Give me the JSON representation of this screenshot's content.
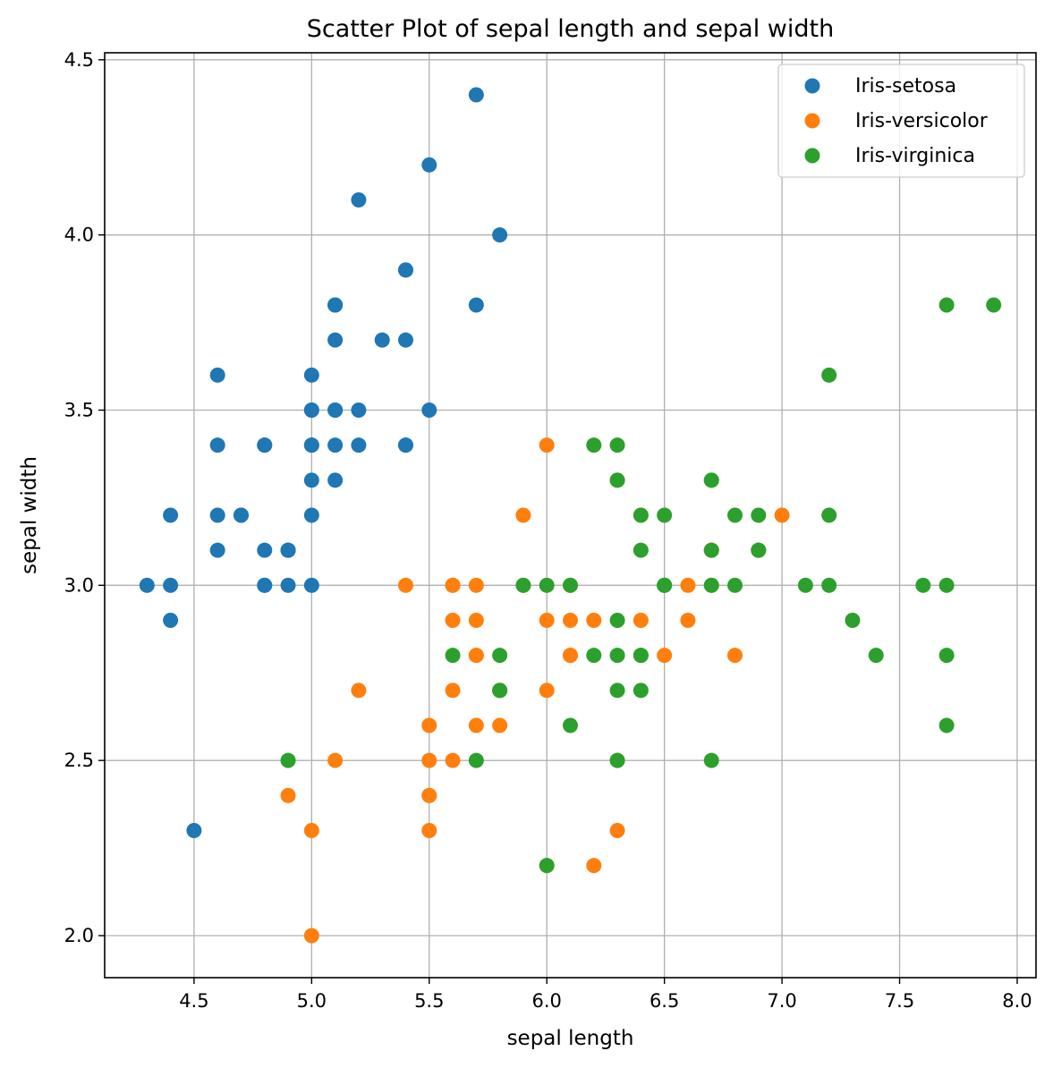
{
  "chart_data": {
    "type": "scatter",
    "title": "Scatter Plot of sepal length and sepal width",
    "xlabel": "sepal length",
    "ylabel": "sepal width",
    "xlim": [
      4.12,
      8.08
    ],
    "ylim": [
      1.88,
      4.52
    ],
    "xticks": [
      "4.5",
      "5.0",
      "5.5",
      "6.0",
      "6.5",
      "7.0",
      "7.5",
      "8.0"
    ],
    "yticks": [
      "2.0",
      "2.5",
      "3.0",
      "3.5",
      "4.0",
      "4.5"
    ],
    "grid": true,
    "legend_position": "top-right",
    "series": [
      {
        "name": "Iris-setosa",
        "color": "#1f77b4",
        "points": [
          [
            5.1,
            3.5
          ],
          [
            4.9,
            3.0
          ],
          [
            4.7,
            3.2
          ],
          [
            4.6,
            3.1
          ],
          [
            5.0,
            3.6
          ],
          [
            5.4,
            3.9
          ],
          [
            4.6,
            3.4
          ],
          [
            5.0,
            3.4
          ],
          [
            4.4,
            2.9
          ],
          [
            4.9,
            3.1
          ],
          [
            5.4,
            3.7
          ],
          [
            4.8,
            3.4
          ],
          [
            4.8,
            3.0
          ],
          [
            4.3,
            3.0
          ],
          [
            5.8,
            4.0
          ],
          [
            5.7,
            4.4
          ],
          [
            5.4,
            3.9
          ],
          [
            5.1,
            3.5
          ],
          [
            5.7,
            3.8
          ],
          [
            5.1,
            3.8
          ],
          [
            5.4,
            3.4
          ],
          [
            5.1,
            3.7
          ],
          [
            4.6,
            3.6
          ],
          [
            5.1,
            3.3
          ],
          [
            4.8,
            3.4
          ],
          [
            5.0,
            3.0
          ],
          [
            5.0,
            3.4
          ],
          [
            5.2,
            3.5
          ],
          [
            5.2,
            3.4
          ],
          [
            4.7,
            3.2
          ],
          [
            4.8,
            3.1
          ],
          [
            5.4,
            3.4
          ],
          [
            5.2,
            4.1
          ],
          [
            5.5,
            4.2
          ],
          [
            4.9,
            3.1
          ],
          [
            5.0,
            3.2
          ],
          [
            5.5,
            3.5
          ],
          [
            4.9,
            3.1
          ],
          [
            4.4,
            3.0
          ],
          [
            5.1,
            3.4
          ],
          [
            5.0,
            3.5
          ],
          [
            4.5,
            2.3
          ],
          [
            4.4,
            3.2
          ],
          [
            5.0,
            3.5
          ],
          [
            5.1,
            3.8
          ],
          [
            4.8,
            3.0
          ],
          [
            5.1,
            3.8
          ],
          [
            4.6,
            3.2
          ],
          [
            5.3,
            3.7
          ],
          [
            5.0,
            3.3
          ]
        ]
      },
      {
        "name": "Iris-versicolor",
        "color": "#ff7f0e",
        "points": [
          [
            7.0,
            3.2
          ],
          [
            6.4,
            3.2
          ],
          [
            6.9,
            3.1
          ],
          [
            5.5,
            2.3
          ],
          [
            6.5,
            2.8
          ],
          [
            5.7,
            2.8
          ],
          [
            6.3,
            3.3
          ],
          [
            4.9,
            2.4
          ],
          [
            6.6,
            2.9
          ],
          [
            5.2,
            2.7
          ],
          [
            5.0,
            2.0
          ],
          [
            5.9,
            3.0
          ],
          [
            6.0,
            2.2
          ],
          [
            6.1,
            2.9
          ],
          [
            5.6,
            2.9
          ],
          [
            6.7,
            3.1
          ],
          [
            5.6,
            3.0
          ],
          [
            5.8,
            2.7
          ],
          [
            6.2,
            2.2
          ],
          [
            5.6,
            2.5
          ],
          [
            5.9,
            3.2
          ],
          [
            6.1,
            2.8
          ],
          [
            6.3,
            2.5
          ],
          [
            6.1,
            2.8
          ],
          [
            6.4,
            2.9
          ],
          [
            6.6,
            3.0
          ],
          [
            6.8,
            2.8
          ],
          [
            6.7,
            3.0
          ],
          [
            6.0,
            2.9
          ],
          [
            5.7,
            2.6
          ],
          [
            5.5,
            2.4
          ],
          [
            5.5,
            2.4
          ],
          [
            5.8,
            2.7
          ],
          [
            6.0,
            2.7
          ],
          [
            5.4,
            3.0
          ],
          [
            6.0,
            3.4
          ],
          [
            6.7,
            3.1
          ],
          [
            6.3,
            2.3
          ],
          [
            5.6,
            3.0
          ],
          [
            5.5,
            2.5
          ],
          [
            5.5,
            2.6
          ],
          [
            6.1,
            3.0
          ],
          [
            5.8,
            2.6
          ],
          [
            5.0,
            2.3
          ],
          [
            5.6,
            2.7
          ],
          [
            5.7,
            3.0
          ],
          [
            5.7,
            2.9
          ],
          [
            6.2,
            2.9
          ],
          [
            5.1,
            2.5
          ],
          [
            5.7,
            2.8
          ]
        ]
      },
      {
        "name": "Iris-virginica",
        "color": "#2ca02c",
        "points": [
          [
            6.3,
            3.3
          ],
          [
            5.8,
            2.7
          ],
          [
            7.1,
            3.0
          ],
          [
            6.3,
            2.9
          ],
          [
            6.5,
            3.0
          ],
          [
            7.6,
            3.0
          ],
          [
            4.9,
            2.5
          ],
          [
            7.3,
            2.9
          ],
          [
            6.7,
            2.5
          ],
          [
            7.2,
            3.6
          ],
          [
            6.5,
            3.2
          ],
          [
            6.4,
            2.7
          ],
          [
            6.8,
            3.0
          ],
          [
            5.7,
            2.5
          ],
          [
            5.8,
            2.8
          ],
          [
            6.4,
            3.2
          ],
          [
            6.5,
            3.0
          ],
          [
            7.7,
            3.8
          ],
          [
            7.7,
            2.6
          ],
          [
            6.0,
            2.2
          ],
          [
            6.9,
            3.2
          ],
          [
            5.6,
            2.8
          ],
          [
            7.7,
            2.8
          ],
          [
            6.3,
            2.7
          ],
          [
            6.7,
            3.3
          ],
          [
            7.2,
            3.2
          ],
          [
            6.2,
            2.8
          ],
          [
            6.1,
            3.0
          ],
          [
            6.4,
            2.8
          ],
          [
            7.2,
            3.0
          ],
          [
            7.4,
            2.8
          ],
          [
            7.9,
            3.8
          ],
          [
            6.4,
            2.8
          ],
          [
            6.3,
            2.8
          ],
          [
            6.1,
            2.6
          ],
          [
            7.7,
            3.0
          ],
          [
            6.3,
            3.4
          ],
          [
            6.4,
            3.1
          ],
          [
            6.0,
            3.0
          ],
          [
            6.9,
            3.1
          ],
          [
            6.7,
            3.1
          ],
          [
            6.9,
            3.1
          ],
          [
            5.8,
            2.7
          ],
          [
            6.8,
            3.2
          ],
          [
            6.7,
            3.3
          ],
          [
            6.7,
            3.0
          ],
          [
            6.3,
            2.5
          ],
          [
            6.5,
            3.0
          ],
          [
            6.2,
            3.4
          ],
          [
            5.9,
            3.0
          ]
        ]
      }
    ]
  }
}
